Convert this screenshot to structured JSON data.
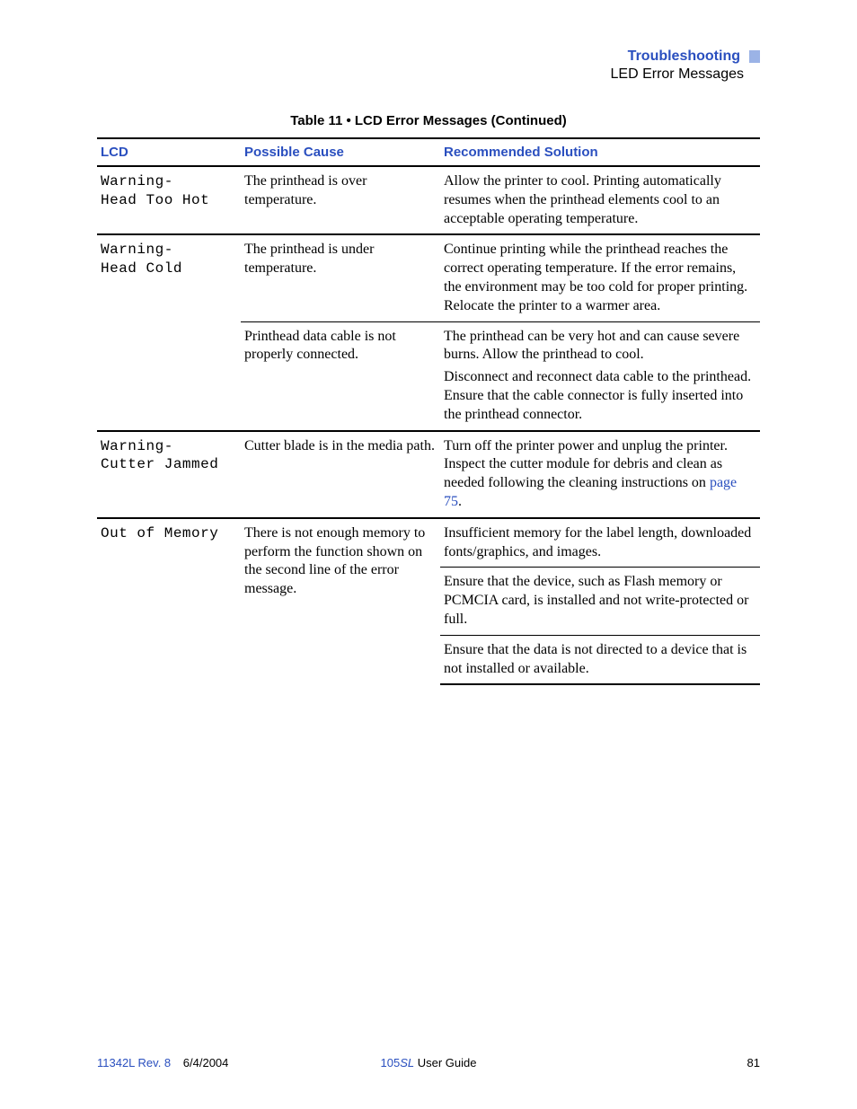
{
  "header": {
    "title": "Troubleshooting",
    "subtitle": "LED Error Messages",
    "title_color": "#2a4fbf",
    "mark_color": "#9bb3e6"
  },
  "table": {
    "caption": "Table 11 • LCD Error Messages (Continued)",
    "columns": [
      "LCD",
      "Possible Cause",
      "Recommended Solution"
    ],
    "header_color": "#2a4fbf"
  },
  "rows": {
    "r1": {
      "lcd": "Warning-\nHead Too Hot",
      "cause": "The printhead is over temperature.",
      "sol": "Allow the printer to cool. Printing automatically resumes when the printhead elements cool to an acceptable operating temperature."
    },
    "r2": {
      "lcd": "Warning-\nHead Cold",
      "cause": "The printhead is under temperature.",
      "sol": "Continue printing while the printhead reaches the correct operating temperature. If the error remains, the environment may be too cold for proper printing. Relocate the printer to a warmer area."
    },
    "r2b": {
      "cause": "Printhead data cable is not properly connected.",
      "sol1": "The printhead can be very hot and can cause severe burns. Allow the printhead to cool.",
      "sol2": "Disconnect and reconnect data cable to the printhead. Ensure that the cable connector is fully inserted into the printhead connector."
    },
    "r3": {
      "lcd": "Warning-\nCutter Jammed",
      "cause": "Cutter blade is in the media path.",
      "sol_pre": "Turn off the printer power and unplug the printer. Inspect the cutter module for debris and clean as needed following the cleaning instructions on ",
      "sol_link": "page 75",
      "sol_post": "."
    },
    "r4": {
      "lcd": "Out of Memory",
      "cause": "There is not enough memory to perform the function shown on the second line of the error message.",
      "sol": "Insufficient memory for the label length, downloaded fonts/graphics, and images."
    },
    "r4b": {
      "sol": "Ensure that the device, such as Flash memory or PCMCIA card, is installed and not write-protected or full."
    },
    "r4c": {
      "sol": "Ensure that the data is not directed to a device that is not installed or available."
    }
  },
  "footer": {
    "rev": "11342L Rev. 8",
    "date": "6/4/2004",
    "doc_prefix": "105",
    "doc_sl": "SL",
    "doc_suffix": " User Guide",
    "page": "81",
    "link_color": "#2a4fbf"
  }
}
